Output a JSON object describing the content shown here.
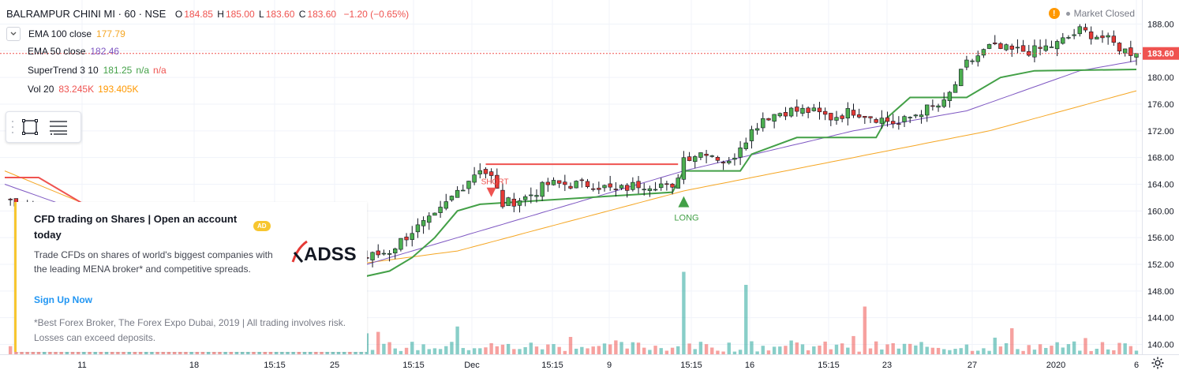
{
  "header": {
    "symbol": "BALRAMPUR CHINI MI · 60 · NSE",
    "open_label": "O",
    "open": "184.85",
    "high_label": "H",
    "high": "185.00",
    "low_label": "L",
    "low": "183.60",
    "close_label": "C",
    "close": "183.60",
    "change": "−1.20 (−0.65%)",
    "market_status": "Market Closed"
  },
  "indicators": [
    {
      "name": "EMA 100 close",
      "values": [
        "177.79"
      ],
      "colors": [
        "#f5a623"
      ]
    },
    {
      "name": "EMA 50 close",
      "values": [
        "182.46"
      ],
      "colors": [
        "#7e57c2"
      ]
    },
    {
      "name": "SuperTrend 3 10",
      "values": [
        "181.25",
        "n/a",
        "n/a"
      ],
      "colors": [
        "#43a047",
        "#43a047",
        "#ef5350"
      ]
    },
    {
      "name": "Vol 20",
      "values": [
        "83.245K",
        "193.405K"
      ],
      "colors": [
        "#ef5350",
        "#ff9800"
      ]
    }
  ],
  "ad": {
    "title": "CFD trading on Shares | Open an account today",
    "badge": "AD",
    "logo_text": "ADSS",
    "body": "Trade CFDs on shares of world's biggest companies with the leading MENA broker* and competitive spreads.",
    "cta": "Sign Up Now",
    "footnote": "*Best Forex Broker, The Forex Expo Dubai, 2019 | All trading involves risk. Losses can exceed deposits."
  },
  "chart_data": {
    "type": "candlestick",
    "interval": "60",
    "last_price": "183.60",
    "y_ticks": [
      "188.00",
      "184.00",
      "180.00",
      "176.00",
      "172.00",
      "168.00",
      "164.00",
      "160.00",
      "156.00",
      "152.00",
      "148.00",
      "144.00",
      "140.00"
    ],
    "ylim": [
      139,
      190
    ],
    "x_tick_labels": [
      "11",
      "18",
      "15:15",
      "25",
      "15:15",
      "Dec",
      "15:15",
      "9",
      "15:15",
      "16",
      "15:15",
      "23",
      "27",
      "2020",
      "6"
    ],
    "signals": [
      {
        "label": "SHORT",
        "price": 163.5,
        "color": "#ef5350"
      },
      {
        "label": "LONG",
        "price": 142.5,
        "color": "#43a047"
      },
      {
        "label": "LONG",
        "price": 161.5,
        "color": "#43a047"
      }
    ],
    "anchors": [
      [
        0,
        162
      ],
      [
        6,
        160
      ],
      [
        12,
        158
      ],
      [
        18,
        155
      ],
      [
        24,
        151
      ],
      [
        30,
        148
      ],
      [
        36,
        146
      ],
      [
        40,
        145.8
      ],
      [
        44,
        148
      ],
      [
        48,
        147
      ],
      [
        52,
        150
      ],
      [
        56,
        150
      ],
      [
        60,
        152
      ],
      [
        64,
        153
      ],
      [
        68,
        154
      ],
      [
        72,
        157
      ],
      [
        76,
        159
      ],
      [
        80,
        163
      ],
      [
        84,
        166.5
      ],
      [
        86,
        165
      ],
      [
        88,
        161
      ],
      [
        92,
        162
      ],
      [
        96,
        164
      ],
      [
        100,
        164
      ],
      [
        104,
        164
      ],
      [
        108,
        163
      ],
      [
        112,
        164
      ],
      [
        116,
        164
      ],
      [
        118,
        163
      ],
      [
        120,
        168
      ],
      [
        124,
        169
      ],
      [
        128,
        167
      ],
      [
        130,
        170
      ],
      [
        134,
        174
      ],
      [
        138,
        175
      ],
      [
        142,
        175
      ],
      [
        146,
        174
      ],
      [
        150,
        175
      ],
      [
        154,
        174
      ],
      [
        158,
        173
      ],
      [
        162,
        175
      ],
      [
        166,
        176
      ],
      [
        170,
        182
      ],
      [
        174,
        184.5
      ],
      [
        178,
        184
      ],
      [
        182,
        184
      ],
      [
        186,
        185
      ],
      [
        190,
        187
      ],
      [
        194,
        186
      ],
      [
        198,
        184
      ],
      [
        200,
        183.6
      ]
    ],
    "ema100": [
      [
        0,
        166
      ],
      [
        20,
        159
      ],
      [
        44,
        150
      ],
      [
        80,
        154
      ],
      [
        120,
        163
      ],
      [
        150,
        168
      ],
      [
        174,
        172
      ],
      [
        200,
        178
      ]
    ],
    "ema50": [
      [
        0,
        164
      ],
      [
        30,
        155
      ],
      [
        44,
        147
      ],
      [
        80,
        156
      ],
      [
        120,
        166
      ],
      [
        150,
        172
      ],
      [
        170,
        175
      ],
      [
        190,
        181
      ],
      [
        200,
        182.5
      ]
    ],
    "supertrend_red": [
      [
        0,
        165
      ],
      [
        6,
        165
      ],
      [
        8,
        164
      ],
      [
        14,
        161
      ],
      [
        20,
        158
      ],
      [
        32,
        152
      ]
    ],
    "supertrend_green": [
      [
        40,
        145.5
      ],
      [
        46,
        146.2
      ],
      [
        52,
        148
      ],
      [
        60,
        149.5
      ],
      [
        68,
        151
      ],
      [
        72,
        153
      ],
      [
        76,
        156
      ],
      [
        80,
        160
      ],
      [
        84,
        161
      ],
      [
        118,
        162.8
      ],
      [
        120,
        166
      ],
      [
        130,
        166
      ],
      [
        132,
        168.5
      ],
      [
        140,
        171
      ],
      [
        154,
        171
      ],
      [
        156,
        174
      ],
      [
        160,
        177
      ],
      [
        170,
        177
      ],
      [
        176,
        180
      ],
      [
        182,
        181
      ],
      [
        200,
        181.2
      ]
    ],
    "supertrend_short_line": [
      [
        85,
        167
      ],
      [
        119,
        167
      ]
    ],
    "volume_spikes": [
      {
        "i": 120,
        "v": 0.95
      },
      {
        "i": 131,
        "v": 0.8
      },
      {
        "i": 152,
        "v": 0.55
      },
      {
        "i": 80,
        "v": 0.32
      },
      {
        "i": 100,
        "v": 0.2
      },
      {
        "i": 178,
        "v": 0.3
      }
    ]
  },
  "colors": {
    "up": "#26a69a",
    "down": "#ef5350",
    "up_body": "#4caf50",
    "down_body": "#e53935",
    "ema100": "#f5a623",
    "ema50": "#7e57c2",
    "st_up": "#43a047",
    "st_down": "#ef5350",
    "price_label_bg": "#ef5350",
    "ad_accent": "#f7c62f",
    "cta": "#2196f3"
  },
  "icons": [
    "chevron-down-icon",
    "rectangle-tool-icon",
    "menu-lines-icon",
    "warning-icon",
    "settings-gear-icon"
  ]
}
